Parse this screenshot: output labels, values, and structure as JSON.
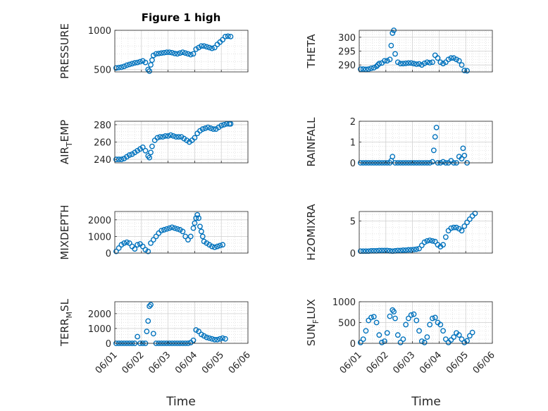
{
  "figure": {
    "title": "Figure 1 high",
    "xlabel": "Time"
  },
  "colors": {
    "marker": "#0072BD",
    "axis": "#262626",
    "grid": "#dcdcdc"
  },
  "xaxis": {
    "min": 0,
    "max": 5,
    "ticks": [
      0,
      1,
      2,
      3,
      4,
      5
    ],
    "tick_labels": [
      "06/01",
      "06/02",
      "06/03",
      "06/04",
      "06/05",
      "06/06"
    ]
  },
  "chart_data": [
    {
      "type": "scatter",
      "name": "PRESSURE",
      "ylabel": "PRESSURE",
      "ylim": [
        470,
        1000
      ],
      "yticks": [
        500,
        1000
      ],
      "grid": true,
      "x": [
        0.05,
        0.15,
        0.25,
        0.35,
        0.45,
        0.55,
        0.65,
        0.75,
        0.85,
        0.95,
        1.05,
        1.15,
        1.25,
        1.3,
        1.35,
        1.4,
        1.45,
        1.55,
        1.65,
        1.75,
        1.85,
        1.95,
        2.05,
        2.15,
        2.25,
        2.35,
        2.45,
        2.55,
        2.65,
        2.75,
        2.85,
        2.95,
        3.05,
        3.15,
        3.25,
        3.35,
        3.45,
        3.55,
        3.65,
        3.75,
        3.85,
        3.95,
        4.05,
        4.15,
        4.25,
        4.35
      ],
      "y": [
        520,
        525,
        530,
        540,
        555,
        565,
        575,
        585,
        590,
        600,
        610,
        590,
        500,
        480,
        560,
        620,
        680,
        700,
        705,
        710,
        715,
        720,
        720,
        715,
        705,
        700,
        710,
        720,
        710,
        700,
        690,
        700,
        760,
        780,
        800,
        800,
        790,
        780,
        770,
        780,
        820,
        850,
        880,
        920,
        925,
        920
      ]
    },
    {
      "type": "scatter",
      "name": "THETA",
      "ylabel": "THETA",
      "ylim": [
        287.5,
        302.5
      ],
      "yticks": [
        290,
        295,
        300
      ],
      "grid": true,
      "x": [
        0.05,
        0.15,
        0.25,
        0.35,
        0.45,
        0.55,
        0.65,
        0.7,
        0.75,
        0.85,
        0.95,
        1.05,
        1.15,
        1.2,
        1.25,
        1.3,
        1.35,
        1.45,
        1.55,
        1.65,
        1.75,
        1.85,
        1.95,
        2.05,
        2.15,
        2.25,
        2.35,
        2.45,
        2.55,
        2.65,
        2.75,
        2.85,
        2.95,
        3.05,
        3.15,
        3.25,
        3.35,
        3.45,
        3.55,
        3.65,
        3.75,
        3.85,
        3.95,
        4.05
      ],
      "y": [
        288.5,
        288.5,
        288.4,
        288.5,
        288.8,
        289,
        289.5,
        290,
        290.5,
        290.7,
        291.5,
        291.5,
        292,
        297,
        301.5,
        302.5,
        294,
        291,
        290.5,
        290.5,
        290.6,
        290.7,
        290.7,
        290.5,
        290.3,
        290.4,
        290,
        290.6,
        291,
        290.8,
        291,
        293.5,
        292.5,
        291,
        290.5,
        291,
        292,
        292.5,
        292.5,
        292,
        291.5,
        290,
        288,
        287.9
      ]
    },
    {
      "type": "scatter",
      "name": "AIR_TEMP",
      "ylabel": "AIR_TEMP",
      "ylim": [
        236,
        284
      ],
      "yticks": [
        240,
        260,
        280
      ],
      "grid": true,
      "x": [
        0.05,
        0.15,
        0.25,
        0.35,
        0.45,
        0.55,
        0.65,
        0.75,
        0.85,
        0.95,
        1.05,
        1.15,
        1.25,
        1.3,
        1.35,
        1.4,
        1.5,
        1.6,
        1.7,
        1.8,
        1.9,
        2.0,
        2.1,
        2.2,
        2.3,
        2.4,
        2.5,
        2.6,
        2.7,
        2.8,
        2.9,
        3.0,
        3.1,
        3.2,
        3.3,
        3.4,
        3.5,
        3.6,
        3.7,
        3.8,
        3.9,
        4.0,
        4.1,
        4.2,
        4.3,
        4.35
      ],
      "y": [
        240,
        240,
        240,
        241,
        243,
        245,
        246,
        248,
        250,
        252,
        254,
        250,
        244,
        242,
        248,
        255,
        262,
        265,
        266,
        266,
        267,
        267,
        268,
        267,
        266,
        266,
        266,
        264,
        262,
        260,
        262,
        265,
        270,
        273,
        275,
        276,
        277,
        276,
        275,
        275,
        277,
        279,
        280,
        281,
        281,
        281
      ]
    },
    {
      "type": "scatter",
      "name": "RAINFALL",
      "ylabel": "RAINFALL",
      "ylim": [
        0,
        2
      ],
      "yticks": [
        0,
        1,
        2
      ],
      "grid": true,
      "x": [
        0.05,
        0.15,
        0.25,
        0.35,
        0.45,
        0.55,
        0.65,
        0.75,
        0.85,
        0.95,
        1.05,
        1.15,
        1.2,
        1.25,
        1.35,
        1.45,
        1.55,
        1.65,
        1.75,
        1.85,
        1.95,
        2.05,
        2.15,
        2.25,
        2.35,
        2.45,
        2.55,
        2.65,
        2.75,
        2.8,
        2.85,
        2.9,
        2.95,
        3.05,
        3.15,
        3.25,
        3.35,
        3.45,
        3.55,
        3.65,
        3.75,
        3.85,
        3.9,
        3.95,
        4.05
      ],
      "y": [
        0,
        0,
        0,
        0,
        0,
        0,
        0,
        0,
        0,
        0,
        0,
        0,
        0.1,
        0.3,
        0,
        0,
        0,
        0,
        0,
        0,
        0,
        0,
        0,
        0,
        0,
        0,
        0,
        0,
        0.05,
        0.6,
        1.25,
        1.7,
        0,
        0,
        0.05,
        0,
        0,
        0.1,
        0,
        0,
        0.3,
        0.2,
        0.7,
        0.35,
        0
      ]
    },
    {
      "type": "scatter",
      "name": "MIXDEPTH",
      "ylabel": "MIXDEPTH",
      "ylim": [
        0,
        2500
      ],
      "yticks": [
        0,
        1000,
        2000
      ],
      "grid": true,
      "x": [
        0.05,
        0.15,
        0.25,
        0.35,
        0.45,
        0.55,
        0.65,
        0.75,
        0.85,
        0.95,
        1.05,
        1.15,
        1.25,
        1.35,
        1.45,
        1.55,
        1.65,
        1.75,
        1.85,
        1.95,
        2.05,
        2.15,
        2.25,
        2.35,
        2.45,
        2.55,
        2.65,
        2.75,
        2.85,
        2.95,
        3.0,
        3.05,
        3.1,
        3.15,
        3.2,
        3.25,
        3.3,
        3.35,
        3.45,
        3.55,
        3.65,
        3.75,
        3.85,
        3.95,
        4.05
      ],
      "y": [
        100,
        300,
        500,
        600,
        650,
        600,
        400,
        250,
        500,
        550,
        400,
        200,
        100,
        600,
        800,
        1000,
        1200,
        1350,
        1400,
        1450,
        1500,
        1550,
        1500,
        1450,
        1400,
        1300,
        1000,
        800,
        1000,
        1500,
        1800,
        2100,
        2300,
        2100,
        1600,
        1300,
        1000,
        700,
        600,
        500,
        400,
        350,
        400,
        450,
        500
      ]
    },
    {
      "type": "scatter",
      "name": "H2OMIXRA",
      "ylabel": "H2OMIXRA",
      "ylim": [
        0,
        6.5
      ],
      "yticks": [
        0,
        5
      ],
      "grid": true,
      "x": [
        0.05,
        0.15,
        0.25,
        0.35,
        0.45,
        0.55,
        0.65,
        0.75,
        0.85,
        0.95,
        1.05,
        1.15,
        1.25,
        1.35,
        1.45,
        1.55,
        1.65,
        1.75,
        1.85,
        1.95,
        2.05,
        2.15,
        2.25,
        2.35,
        2.45,
        2.55,
        2.65,
        2.75,
        2.85,
        2.95,
        3.05,
        3.15,
        3.25,
        3.35,
        3.45,
        3.55,
        3.65,
        3.75,
        3.85,
        3.95,
        4.05,
        4.15,
        4.25,
        4.35
      ],
      "y": [
        0.3,
        0.3,
        0.3,
        0.3,
        0.35,
        0.35,
        0.35,
        0.4,
        0.4,
        0.4,
        0.4,
        0.35,
        0.3,
        0.35,
        0.4,
        0.4,
        0.45,
        0.45,
        0.5,
        0.5,
        0.55,
        0.6,
        0.7,
        1.2,
        1.7,
        1.9,
        2.0,
        1.9,
        1.8,
        1.3,
        1.0,
        1.3,
        2.5,
        3.5,
        3.9,
        4.0,
        4.0,
        3.8,
        3.5,
        4.2,
        4.8,
        5.3,
        5.8,
        6.2
      ]
    },
    {
      "type": "scatter",
      "name": "TERR_MSL",
      "ylabel": "TERR_MSL",
      "ylim": [
        0,
        2800
      ],
      "yticks": [
        0,
        1000,
        2000
      ],
      "grid": true,
      "x": [
        0.05,
        0.15,
        0.25,
        0.35,
        0.45,
        0.55,
        0.65,
        0.75,
        0.85,
        0.95,
        1.05,
        1.15,
        1.2,
        1.25,
        1.3,
        1.35,
        1.45,
        1.55,
        1.65,
        1.75,
        1.85,
        1.95,
        2.05,
        2.15,
        2.25,
        2.35,
        2.45,
        2.55,
        2.65,
        2.75,
        2.85,
        2.95,
        3.05,
        3.15,
        3.25,
        3.35,
        3.45,
        3.55,
        3.65,
        3.75,
        3.85,
        3.95,
        4.05,
        4.15
      ],
      "y": [
        0,
        0,
        0,
        0,
        0,
        0,
        0,
        0,
        450,
        0,
        0,
        0,
        800,
        1500,
        2500,
        2600,
        650,
        0,
        0,
        0,
        0,
        0,
        0,
        0,
        0,
        0,
        0,
        0,
        0,
        0,
        50,
        200,
        900,
        800,
        600,
        500,
        400,
        350,
        300,
        250,
        250,
        300,
        350,
        300
      ]
    },
    {
      "type": "scatter",
      "name": "SUN_FLUX",
      "ylabel": "SUN_FLUX",
      "ylim": [
        0,
        1000
      ],
      "yticks": [
        0,
        500,
        1000
      ],
      "grid": true,
      "x": [
        0.05,
        0.15,
        0.25,
        0.35,
        0.45,
        0.55,
        0.65,
        0.75,
        0.85,
        0.95,
        1.05,
        1.15,
        1.25,
        1.3,
        1.35,
        1.45,
        1.55,
        1.65,
        1.75,
        1.85,
        1.95,
        2.05,
        2.15,
        2.25,
        2.35,
        2.45,
        2.55,
        2.65,
        2.75,
        2.85,
        2.95,
        3.05,
        3.15,
        3.25,
        3.35,
        3.45,
        3.55,
        3.65,
        3.75,
        3.85,
        3.95,
        4.05,
        4.15,
        4.25
      ],
      "y": [
        20,
        100,
        300,
        550,
        620,
        640,
        500,
        200,
        20,
        50,
        250,
        650,
        800,
        760,
        600,
        200,
        20,
        100,
        450,
        600,
        680,
        700,
        550,
        300,
        50,
        20,
        150,
        450,
        600,
        620,
        500,
        450,
        300,
        100,
        20,
        80,
        150,
        250,
        200,
        100,
        20,
        60,
        180,
        260
      ]
    }
  ]
}
